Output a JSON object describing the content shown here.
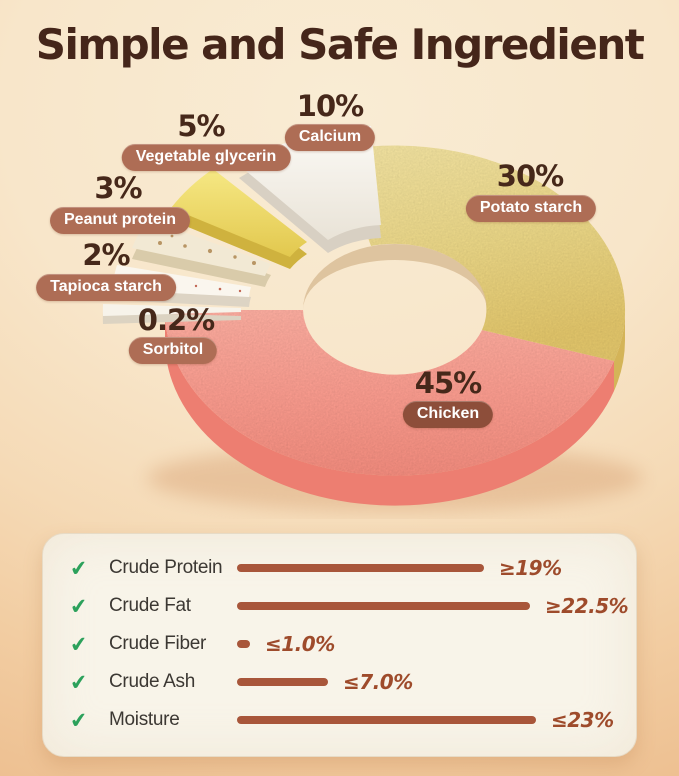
{
  "title": "Simple and Safe Ingredient",
  "chart_data": {
    "type": "pie",
    "subtype": "3d-donut",
    "title": "Ingredient composition",
    "unit": "%",
    "slices": [
      {
        "label": "Chicken",
        "value": 45,
        "display": "45%",
        "color": "#f79b8e"
      },
      {
        "label": "Potato starch",
        "value": 30,
        "display": "30%",
        "color": "#e8d484"
      },
      {
        "label": "Calcium",
        "value": 10,
        "display": "10%",
        "color": "#f6f2ea"
      },
      {
        "label": "Vegetable glycerin",
        "value": 5,
        "display": "5%",
        "color": "#f0dc6d"
      },
      {
        "label": "Peanut protein",
        "value": 3,
        "display": "3%",
        "color": "#f2e9d5"
      },
      {
        "label": "Tapioca starch",
        "value": 2,
        "display": "2%",
        "color": "#faf6ee"
      },
      {
        "label": "Sorbitol",
        "value": 0.2,
        "display": "0.2%",
        "color": "#f8f4ec"
      }
    ],
    "legend_position": "labels-around-slices"
  },
  "analysis_panel": {
    "check_icon": "✔",
    "rows": [
      {
        "label": "Crude Protein",
        "operator": "≥",
        "value": 19,
        "display": "≥19%"
      },
      {
        "label": "Crude Fat",
        "operator": "≥",
        "value": 22.5,
        "display": "≥22.5%"
      },
      {
        "label": "Crude Fiber",
        "operator": "≤",
        "value": 1.0,
        "display": "≤1.0%"
      },
      {
        "label": "Crude Ash",
        "operator": "≤",
        "value": 7.0,
        "display": "≤7.0%"
      },
      {
        "label": "Moisture",
        "operator": "≤",
        "value": 23,
        "display": "≤23%"
      }
    ]
  },
  "colors": {
    "background_top": "#f9ecd4",
    "background_bottom": "#edbf90",
    "title_text": "#45261a",
    "pill_background": "#ae6d55",
    "pill_background_dark": "#8d4e3a",
    "bar": "#a8563a",
    "value_text": "#9e4b2b",
    "check_green": "#2ca15b",
    "panel_background": "#f8f4e9"
  }
}
